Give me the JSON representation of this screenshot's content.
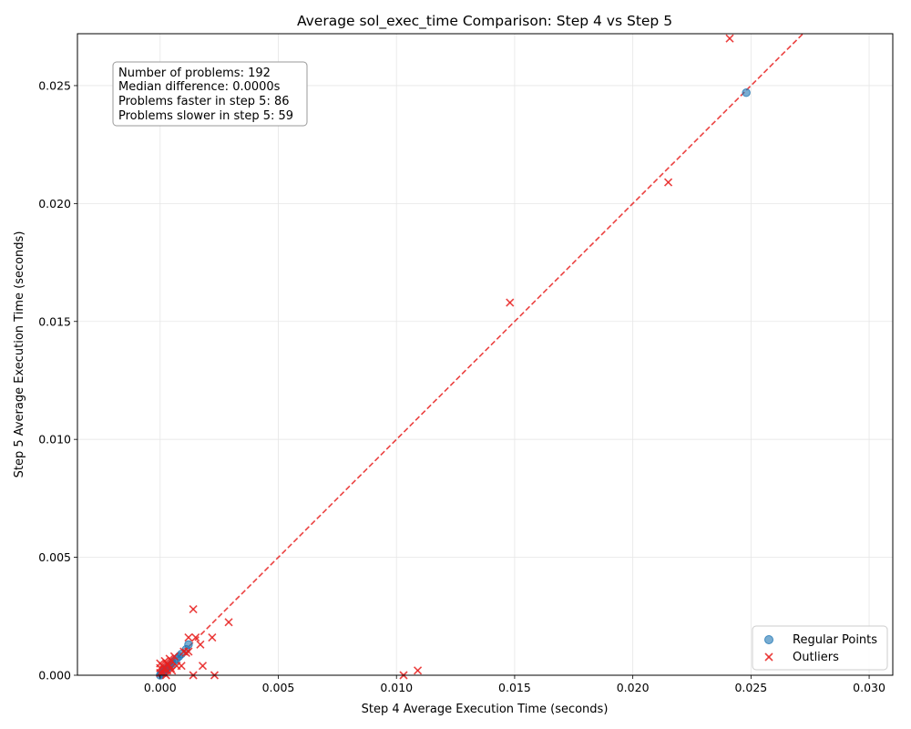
{
  "chart_data": {
    "type": "scatter",
    "title": "Average sol_exec_time Comparison: Step 4 vs Step 5",
    "xlabel": "Step 4 Average Execution Time (seconds)",
    "ylabel": "Step 5 Average Execution Time (seconds)",
    "xlim": [
      -0.0035,
      0.031
    ],
    "ylim": [
      0,
      0.0272
    ],
    "x_ticks": [
      0.0,
      0.005,
      0.01,
      0.015,
      0.02,
      0.025,
      0.03
    ],
    "x_tick_labels": [
      "0.000",
      "0.005",
      "0.010",
      "0.015",
      "0.020",
      "0.025",
      "0.030"
    ],
    "y_ticks": [
      0.0,
      0.005,
      0.01,
      0.015,
      0.02,
      0.025
    ],
    "y_tick_labels": [
      "0.000",
      "0.005",
      "0.010",
      "0.015",
      "0.020",
      "0.025"
    ],
    "grid": true,
    "legend_position": "lower-right",
    "stats_box": [
      "Number of problems: 192",
      "Median difference: 0.0000s",
      "Problems faster in step 5: 86",
      "Problems slower in step 5: 59"
    ],
    "reference_line": {
      "name": "y = x",
      "style": "dashed",
      "color": "#e8201f"
    },
    "series": [
      {
        "name": "Regular Points",
        "marker": "circle",
        "color": "#1f77b4",
        "points": [
          [
            0.0,
            0.0
          ],
          [
            5e-05,
            5e-05
          ],
          [
            0.0001,
            0.0001
          ],
          [
            0.00015,
            0.00015
          ],
          [
            0.0002,
            0.0002
          ],
          [
            0.00025,
            0.00025
          ],
          [
            0.0003,
            0.0003
          ],
          [
            0.00035,
            0.00035
          ],
          [
            0.0004,
            0.0004
          ],
          [
            0.0005,
            0.0005
          ],
          [
            0.0006,
            0.0006
          ],
          [
            0.0007,
            0.0007
          ],
          [
            0.0008,
            0.0008
          ],
          [
            0.0009,
            0.0009
          ],
          [
            0.0011,
            0.0011
          ],
          [
            0.0012,
            0.0013
          ],
          [
            0.0248,
            0.0247
          ]
        ]
      },
      {
        "name": "Outliers",
        "marker": "x",
        "color": "#e8201f",
        "points": [
          [
            0.0241,
            0.027
          ],
          [
            0.0215,
            0.0209
          ],
          [
            0.0148,
            0.0158
          ],
          [
            0.0014,
            0.0028
          ],
          [
            0.0029,
            0.00225
          ],
          [
            0.0022,
            0.0016
          ],
          [
            0.0017,
            0.0013
          ],
          [
            0.0015,
            0.0016
          ],
          [
            0.0012,
            0.0016
          ],
          [
            0.0018,
            0.0004
          ],
          [
            0.0012,
            0.001
          ],
          [
            0.0011,
            0.00095
          ],
          [
            0.001,
            0.001
          ],
          [
            0.0009,
            0.0004
          ],
          [
            0.0007,
            0.0004
          ],
          [
            0.0006,
            0.0008
          ],
          [
            0.0005,
            0.0006
          ],
          [
            0.0004,
            0.0007
          ],
          [
            0.0004,
            0.0004
          ],
          [
            0.0003,
            0.0005
          ],
          [
            0.0003,
            0.0002
          ],
          [
            0.0002,
            0.0006
          ],
          [
            0.0002,
            0.0003
          ],
          [
            0.0001,
            0.0004
          ],
          [
            0.0001,
            0.0001
          ],
          [
            0.0,
            0.0005
          ],
          [
            0.0,
            0.0003
          ],
          [
            0.0,
            0.0001
          ],
          [
            0.00025,
            0.0
          ],
          [
            0.0005,
            0.0002
          ],
          [
            0.0003,
            0.00045
          ],
          [
            0.00015,
            0.00025
          ],
          [
            0.00045,
            0.0003
          ],
          [
            0.0014,
            0.0
          ],
          [
            0.0023,
            0.0
          ],
          [
            0.0103,
            0.0
          ],
          [
            0.0109,
            0.0002
          ]
        ]
      }
    ]
  }
}
